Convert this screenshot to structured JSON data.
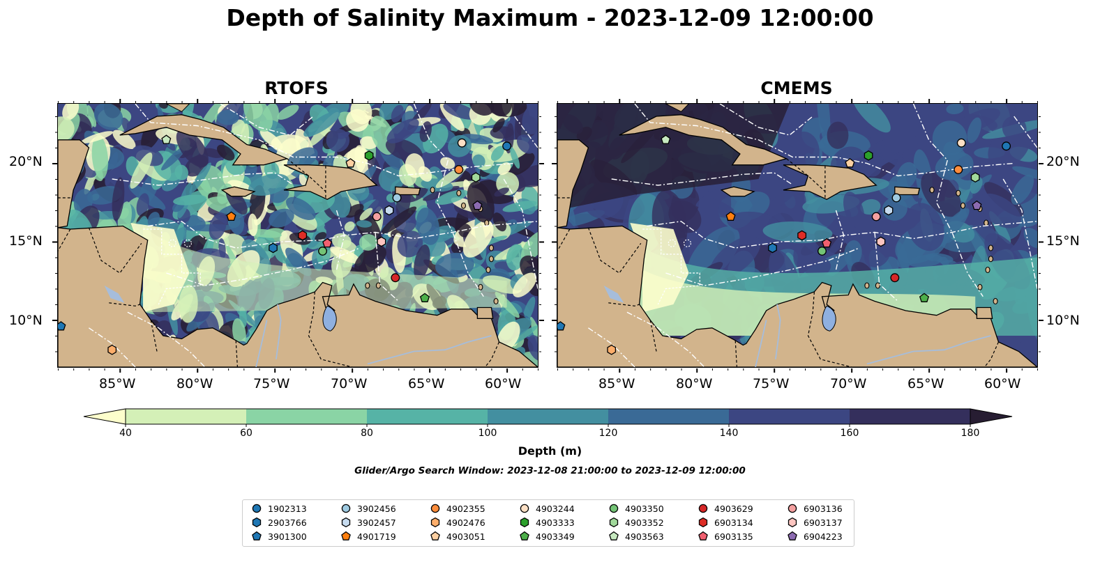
{
  "title": "Depth of Salinity Maximum - 2023-12-09 12:00:00",
  "panels": [
    {
      "title": "RTOFS"
    },
    {
      "title": "CMEMS"
    }
  ],
  "lon_ticks": [
    "85°W",
    "80°W",
    "75°W",
    "70°W",
    "65°W",
    "60°W"
  ],
  "lat_ticks": [
    "20°N",
    "15°N",
    "10°N"
  ],
  "map_extent": {
    "lon": [
      -89,
      -58
    ],
    "lat": [
      7,
      23.8
    ]
  },
  "colorbar": {
    "label": "Depth (m)",
    "ticks": [
      "40",
      "60",
      "80",
      "100",
      "120",
      "140",
      "160",
      "180"
    ],
    "colors": [
      "#fdfecc",
      "#d4f0b7",
      "#8ad4a5",
      "#56b3a6",
      "#438fa0",
      "#3a6a96",
      "#3c4682",
      "#342f5c",
      "#271d32"
    ]
  },
  "window_label": "Glider/Argo Search Window: 2023-12-08 21:00:00 to 2023-12-09 12:00:00",
  "colors": {
    "land": "#d2b48c",
    "lake": "#8fb0e0",
    "river": "#a6bddb",
    "sea_deep": "#271d32"
  },
  "floats": [
    {
      "id": "1902313",
      "marker": "circle",
      "color": "#1f77b4",
      "rtofs": [
        -60.0,
        21.1
      ],
      "cmems": [
        -60.0,
        21.1
      ]
    },
    {
      "id": "2903766",
      "marker": "hexagon",
      "color": "#1f77b4",
      "rtofs": [
        -75.1,
        14.6
      ],
      "cmems": [
        -75.1,
        14.6
      ]
    },
    {
      "id": "3901300",
      "marker": "pentagon",
      "color": "#1f77b4",
      "rtofs": [
        -88.8,
        9.6
      ],
      "cmems": [
        -88.8,
        9.6
      ]
    },
    {
      "id": "3902456",
      "marker": "circle",
      "color": "#9ecae1",
      "rtofs": [
        -67.1,
        17.8
      ],
      "cmems": [
        -67.1,
        17.8
      ]
    },
    {
      "id": "3902457",
      "marker": "hexagon",
      "color": "#c6dbef",
      "rtofs": [
        -67.6,
        17.0
      ],
      "cmems": [
        -67.6,
        17.0
      ]
    },
    {
      "id": "4901719",
      "marker": "pentagon",
      "color": "#ff7f0e",
      "rtofs": [
        -77.8,
        16.6
      ],
      "cmems": [
        -77.8,
        16.6
      ]
    },
    {
      "id": "4902355",
      "marker": "circle",
      "color": "#fd8d3c",
      "rtofs": [
        -63.1,
        19.6
      ],
      "cmems": [
        -63.1,
        19.6
      ]
    },
    {
      "id": "4902476",
      "marker": "hexagon",
      "color": "#fdae6b",
      "rtofs": [
        -85.5,
        8.1
      ],
      "cmems": [
        -85.5,
        8.1
      ]
    },
    {
      "id": "4903051",
      "marker": "pentagon",
      "color": "#fdd0a2",
      "rtofs": [
        -70.1,
        20.0
      ],
      "cmems": [
        -70.1,
        20.0
      ]
    },
    {
      "id": "4903244",
      "marker": "circle",
      "color": "#fde0c5",
      "rtofs": [
        -62.9,
        21.3
      ],
      "cmems": [
        -62.9,
        21.3
      ]
    },
    {
      "id": "4903333",
      "marker": "hexagon",
      "color": "#2ca02c",
      "rtofs": [
        -68.9,
        20.5
      ],
      "cmems": [
        -68.9,
        20.5
      ]
    },
    {
      "id": "4903349",
      "marker": "pentagon",
      "color": "#4daf4a",
      "rtofs": [
        -65.3,
        11.4
      ],
      "cmems": [
        -65.3,
        11.4
      ]
    },
    {
      "id": "4903350",
      "marker": "circle",
      "color": "#74c476",
      "rtofs": [
        -71.9,
        14.4
      ],
      "cmems": [
        -71.9,
        14.4
      ]
    },
    {
      "id": "4903352",
      "marker": "hexagon",
      "color": "#a1d99b",
      "rtofs": [
        -62.0,
        19.1
      ],
      "cmems": [
        -62.0,
        19.1
      ]
    },
    {
      "id": "4903563",
      "marker": "pentagon",
      "color": "#c7e9c0",
      "rtofs": [
        -82.0,
        21.5
      ],
      "cmems": [
        -82.0,
        21.5
      ]
    },
    {
      "id": "4903629",
      "marker": "circle",
      "color": "#d62728",
      "rtofs": [
        -67.2,
        12.7
      ],
      "cmems": [
        -67.2,
        12.7
      ]
    },
    {
      "id": "6903134",
      "marker": "hexagon",
      "color": "#de2d26",
      "rtofs": [
        -73.2,
        15.4
      ],
      "cmems": [
        -73.2,
        15.4
      ]
    },
    {
      "id": "6903135",
      "marker": "pentagon",
      "color": "#f16070",
      "rtofs": [
        -71.6,
        14.9
      ],
      "cmems": [
        -71.6,
        14.9
      ]
    },
    {
      "id": "6903136",
      "marker": "circle",
      "color": "#f4a0a0",
      "rtofs": [
        -68.4,
        16.6
      ],
      "cmems": [
        -68.4,
        16.6
      ]
    },
    {
      "id": "6903137",
      "marker": "hexagon",
      "color": "#fcc5c0",
      "rtofs": [
        -68.1,
        15.0
      ],
      "cmems": [
        -68.1,
        15.0
      ]
    },
    {
      "id": "6904223",
      "marker": "pentagon",
      "color": "#8c6bb1",
      "rtofs": [
        -61.9,
        17.3
      ],
      "cmems": [
        -61.9,
        17.3
      ]
    }
  ]
}
